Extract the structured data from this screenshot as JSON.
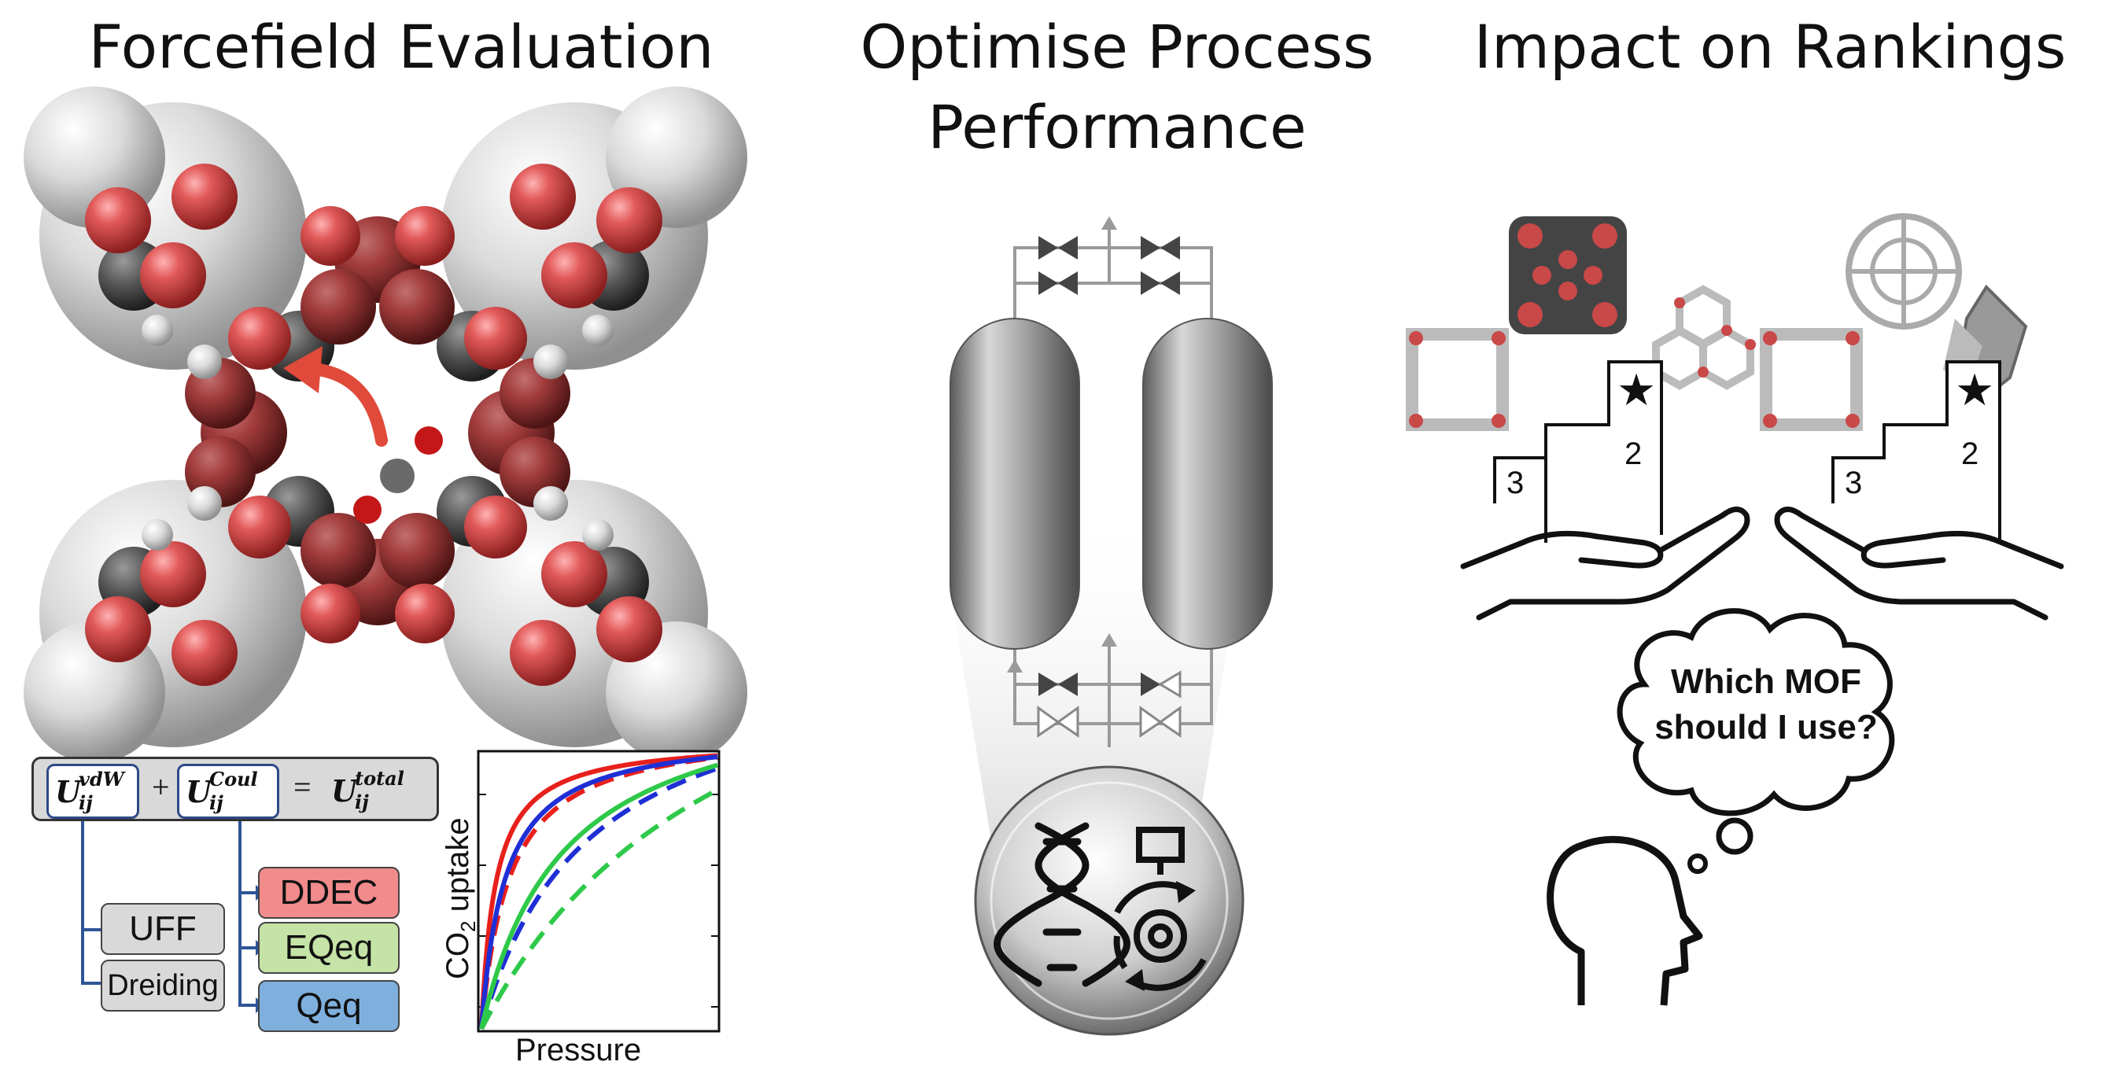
{
  "titles": {
    "left": "Forcefield Evaluation",
    "middle_line1": "Optimise Process",
    "middle_line2": "Performance",
    "right": "Impact on Rankings"
  },
  "equation": {
    "term1": "U",
    "term1_sup": "vdW",
    "term1_sub": "ij",
    "plus": "+",
    "term2": "U",
    "term2_sup": "Coul",
    "term2_sub": "ij",
    "equals": "=",
    "term3": "U",
    "term3_sup": "total",
    "term3_sub": "ij"
  },
  "vdw_forcefields": [
    {
      "label": "UFF",
      "color": "#d9d9d9"
    },
    {
      "label": "Dreiding",
      "color": "#d9d9d9"
    }
  ],
  "charge_schemes": [
    {
      "label": "DDEC",
      "color": "#f28b8b"
    },
    {
      "label": "EQeq",
      "color": "#c5e3a6"
    },
    {
      "label": "Qeq",
      "color": "#7fb0dd"
    }
  ],
  "chart_data": {
    "type": "line",
    "xlabel": "Pressure",
    "ylabel_main": "CO",
    "ylabel_sub": "2",
    "ylabel_rest": " uptake",
    "series": [
      {
        "color": "#e8201c",
        "style": "solid",
        "k": 0.06
      },
      {
        "color": "#e8201c",
        "style": "dashed",
        "k": 0.12
      },
      {
        "color": "#1f2fd6",
        "style": "solid",
        "k": 0.1
      },
      {
        "color": "#1f2fd6",
        "style": "dashed",
        "k": 0.45
      },
      {
        "color": "#2fc94a",
        "style": "solid",
        "k": 0.35
      },
      {
        "color": "#2fc94a",
        "style": "dashed",
        "k": 1.1
      }
    ],
    "grid": false,
    "legend": "none"
  },
  "podium": {
    "left_ranks": {
      "first": "★",
      "second": "2",
      "third": "3"
    },
    "right_ranks": {
      "first": "★",
      "second": "2",
      "third": "3"
    }
  },
  "thought_bubble": {
    "line1": "Which MOF",
    "line2": "should I use?"
  },
  "icons": {
    "dna": "dna-icon",
    "gear": "gear-cycle-icon",
    "head": "head-outline-icon",
    "hand": "open-hand-icon",
    "valve": "valve-icon"
  }
}
